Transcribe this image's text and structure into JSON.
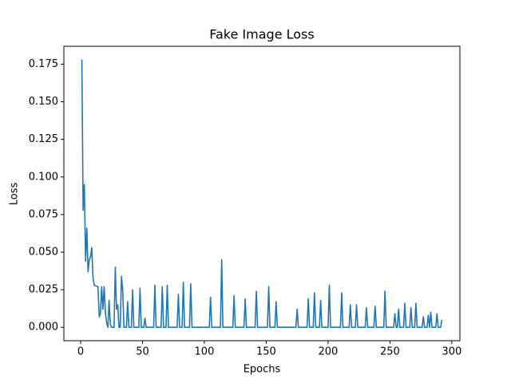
{
  "chart_data": {
    "type": "line",
    "title": "Fake Image Loss",
    "x_label": "Epochs",
    "y_label": "Loss",
    "xlim": [
      -13.55,
      306.55
    ],
    "ylim": [
      -0.0089,
      0.1869
    ],
    "xticks": [
      0,
      50,
      100,
      150,
      200,
      250,
      300
    ],
    "yticks": [
      {
        "value": 0,
        "label": "0.000"
      },
      {
        "value": 0.025,
        "label": "0.025"
      },
      {
        "value": 0.05,
        "label": "0.050"
      },
      {
        "value": 0.075,
        "label": "0.075"
      },
      {
        "value": 0.1,
        "label": "0.100"
      },
      {
        "value": 0.125,
        "label": "0.125"
      },
      {
        "value": 0.15,
        "label": "0.150"
      },
      {
        "value": 0.175,
        "label": "0.175"
      }
    ],
    "series": [
      {
        "color": "#1f77b4",
        "x": [
          1,
          2,
          3,
          4,
          5,
          6,
          7,
          8,
          9,
          10,
          11,
          14,
          15,
          16,
          17,
          18,
          19,
          20,
          21,
          22,
          23,
          24,
          25,
          27,
          28,
          29,
          30,
          31,
          32,
          33,
          34,
          35,
          37,
          38,
          39,
          41,
          42,
          43,
          47,
          48,
          49,
          51,
          52,
          53,
          59,
          60,
          61,
          65,
          66,
          67,
          69,
          70,
          71,
          78,
          79,
          80,
          82,
          83,
          84,
          88,
          89,
          90,
          104,
          105,
          106,
          113,
          114,
          115,
          123,
          124,
          125,
          132,
          133,
          134,
          141,
          142,
          143,
          151,
          152,
          153,
          157,
          158,
          159,
          174,
          175,
          176,
          183,
          184,
          185,
          188,
          189,
          190,
          193,
          194,
          195,
          200,
          201,
          202,
          210,
          211,
          212,
          217,
          218,
          219,
          222,
          223,
          224,
          230,
          231,
          232,
          237,
          238,
          239,
          245,
          246,
          247,
          253,
          254,
          255,
          256,
          257,
          258,
          261,
          262,
          263,
          266,
          267,
          268,
          270,
          271,
          272,
          276,
          277,
          278,
          280,
          281,
          282,
          283,
          284,
          287,
          288,
          289,
          291,
          292
        ],
        "values": [
          0.178,
          0.078,
          0.095,
          0.044,
          0.066,
          0.037,
          0.045,
          0.047,
          0.053,
          0.033,
          0.028,
          0.027,
          0.007,
          0.009,
          0.027,
          0.012,
          0.027,
          0.01,
          0.003,
          0,
          0.018,
          0.002,
          0,
          0,
          0.04,
          0.012,
          0.015,
          0,
          0,
          0.034,
          0.025,
          0,
          0,
          0.017,
          0,
          0,
          0.025,
          0,
          0,
          0.026,
          0,
          0,
          0.006,
          0,
          0,
          0.028,
          0,
          0,
          0.027,
          0,
          0,
          0.028,
          0,
          0,
          0.022,
          0,
          0,
          0.03,
          0,
          0,
          0.029,
          0,
          0,
          0.02,
          0,
          0,
          0.045,
          0,
          0,
          0.021,
          0,
          0,
          0.019,
          0,
          0,
          0.024,
          0,
          0,
          0.027,
          0,
          0,
          0.017,
          0,
          0,
          0.012,
          0,
          0,
          0.019,
          0,
          0,
          0.023,
          0,
          0,
          0.018,
          0,
          0,
          0.028,
          0,
          0,
          0.023,
          0,
          0,
          0.015,
          0,
          0,
          0.015,
          0,
          0,
          0.013,
          0,
          0,
          0.014,
          0,
          0,
          0.024,
          0,
          0,
          0.009,
          0,
          0,
          0.012,
          0,
          0,
          0.016,
          0,
          0,
          0.013,
          0,
          0,
          0.016,
          0,
          0,
          0.007,
          0,
          0,
          0.008,
          0,
          0.01,
          0,
          0,
          0.009,
          0,
          0,
          0.005
        ]
      }
    ]
  }
}
